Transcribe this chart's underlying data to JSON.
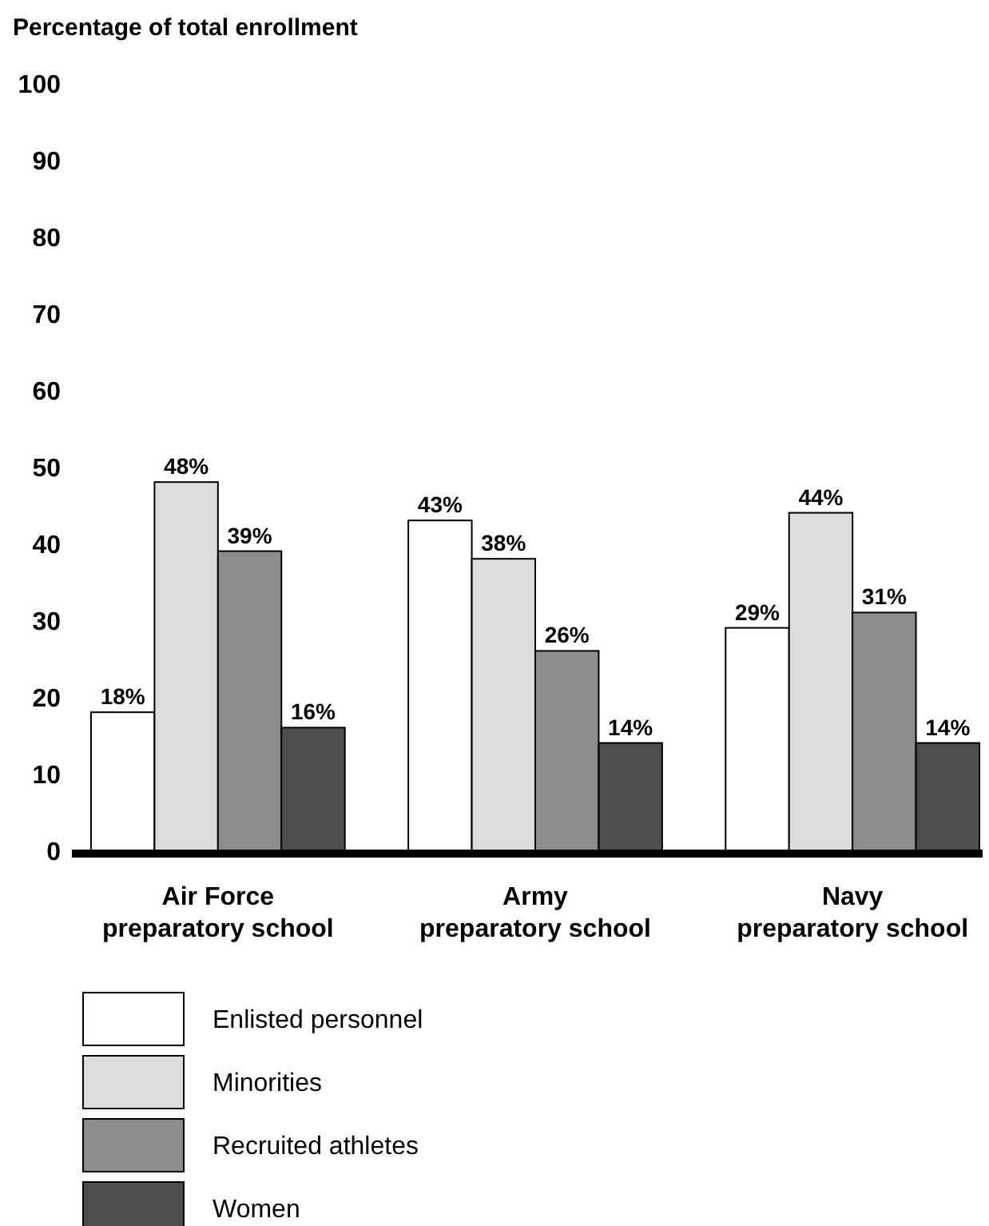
{
  "chart_data": {
    "type": "bar",
    "ylabel": "Percentage of total enrollment",
    "categories": [
      "Air Force\npreparatory school",
      "Army\npreparatory school",
      "Navy\npreparatory school"
    ],
    "series": [
      {
        "name": "Enlisted personnel",
        "color": "#ffffff",
        "values": [
          18,
          43,
          29
        ],
        "value_labels": [
          "18%",
          "43%",
          "29%"
        ]
      },
      {
        "name": "Minorities",
        "color": "#dcdcdc",
        "values": [
          48,
          38,
          44
        ],
        "value_labels": [
          "48%",
          "38%",
          "44%"
        ]
      },
      {
        "name": "Recruited athletes",
        "color": "#8c8c8c",
        "values": [
          39,
          26,
          31
        ],
        "value_labels": [
          "39%",
          "26%",
          "31%"
        ]
      },
      {
        "name": "Women",
        "color": "#4d4d4d",
        "values": [
          16,
          14,
          14
        ],
        "value_labels": [
          "16%",
          "14%",
          "14%"
        ]
      }
    ],
    "ylim": [
      0,
      100
    ],
    "yticks": [
      0,
      10,
      20,
      30,
      40,
      50,
      60,
      70,
      80,
      90,
      100
    ],
    "grid": false,
    "legend": "bottom"
  }
}
